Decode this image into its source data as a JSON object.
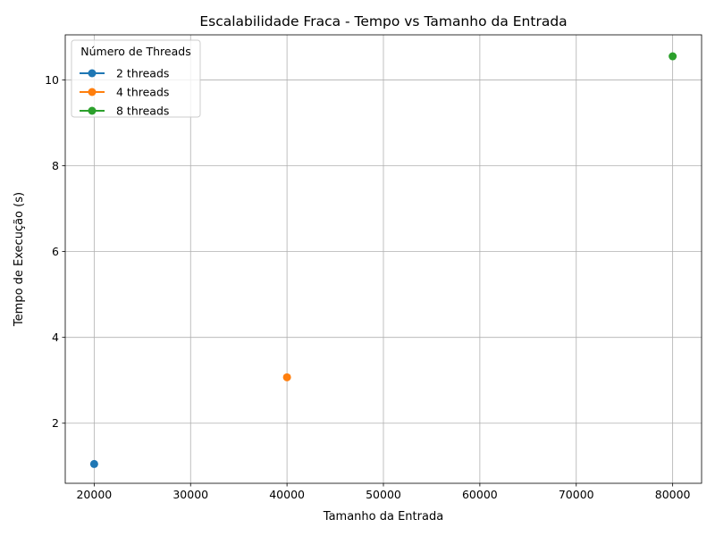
{
  "chart_data": {
    "type": "line",
    "title": "Escalabilidade Fraca - Tempo vs Tamanho da Entrada",
    "xlabel": "Tamanho da Entrada",
    "ylabel": "Tempo de Execução (s)",
    "xlim": [
      17000,
      83000
    ],
    "ylim": [
      0.6,
      11.05
    ],
    "xticks": [
      20000,
      30000,
      40000,
      50000,
      60000,
      70000,
      80000
    ],
    "yticks": [
      2,
      4,
      6,
      8,
      10
    ],
    "grid": true,
    "legend": {
      "title": "Número de Threads",
      "placement": "top-left"
    },
    "series": [
      {
        "name": "2 threads",
        "color": "#1f77b4",
        "x": [
          20000
        ],
        "y": [
          1.05
        ]
      },
      {
        "name": "4 threads",
        "color": "#ff7f0e",
        "x": [
          40000
        ],
        "y": [
          3.07
        ]
      },
      {
        "name": "8 threads",
        "color": "#2ca02c",
        "x": [
          80000
        ],
        "y": [
          10.55
        ]
      }
    ]
  }
}
